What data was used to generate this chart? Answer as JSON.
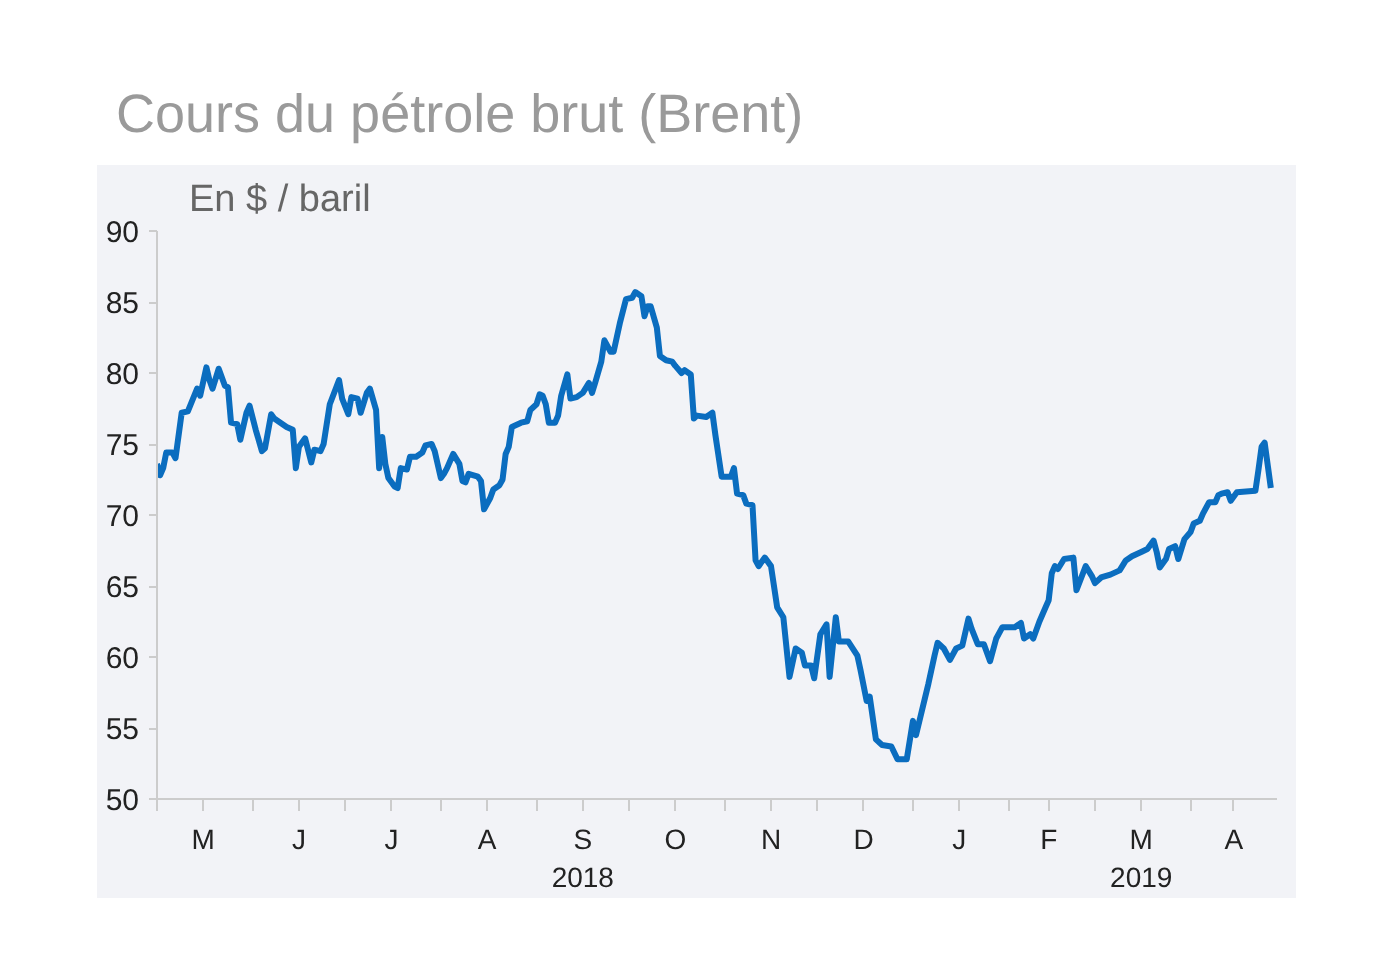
{
  "chart_data": {
    "type": "line",
    "title": "Cours du pétrole brut (Brent)",
    "ylabel": "En $ / baril",
    "xlim": [
      "2018-05-01",
      "2019-04-29"
    ],
    "ylim": [
      50,
      90
    ],
    "yticks": [
      50,
      55,
      60,
      65,
      70,
      75,
      80,
      85,
      90
    ],
    "xticks": [
      {
        "value": "2018-05-01",
        "label": null
      },
      {
        "value": "2018-06-01",
        "label": null
      },
      {
        "value": "2018-07-01",
        "label": null
      },
      {
        "value": "2018-08-01",
        "label": null
      },
      {
        "value": "2018-09-01",
        "label": null
      },
      {
        "value": "2018-10-01",
        "label": null
      },
      {
        "value": "2018-11-01",
        "label": null
      },
      {
        "value": "2018-12-01",
        "label": null
      },
      {
        "value": "2019-01-01",
        "label": null
      },
      {
        "value": "2019-02-01",
        "label": null
      },
      {
        "value": "2019-03-01",
        "label": null
      },
      {
        "value": "2019-04-01",
        "label": null
      },
      {
        "value": "2018-05-16",
        "label": "M"
      },
      {
        "value": "2018-06-16",
        "label": "J"
      },
      {
        "value": "2018-07-16",
        "label": "J"
      },
      {
        "value": "2018-08-16",
        "label": "A"
      },
      {
        "value": "2018-09-16",
        "label": "S\n2018"
      },
      {
        "value": "2018-10-16",
        "label": "O"
      },
      {
        "value": "2018-11-16",
        "label": "N"
      },
      {
        "value": "2018-12-16",
        "label": "D"
      },
      {
        "value": "2019-01-16",
        "label": "J"
      },
      {
        "value": "2019-02-14",
        "label": "F"
      },
      {
        "value": "2019-03-16",
        "label": "M\n2019"
      },
      {
        "value": "2019-04-15",
        "label": "A"
      }
    ],
    "grid": false,
    "marker": "none",
    "line_style": "solid",
    "series": [
      {
        "color": "#0b6dbf",
        "x": [
          "2018-05-01",
          "2018-05-02",
          "2018-05-03",
          "2018-05-04",
          "2018-05-06",
          "2018-05-07",
          "2018-05-09",
          "2018-05-11",
          "2018-05-14",
          "2018-05-15",
          "2018-05-17",
          "2018-05-18",
          "2018-05-19",
          "2018-05-21",
          "2018-05-23",
          "2018-05-24",
          "2018-05-25",
          "2018-05-27",
          "2018-05-28",
          "2018-05-30",
          "2018-05-31",
          "2018-06-02",
          "2018-06-04",
          "2018-06-05",
          "2018-06-07",
          "2018-06-08",
          "2018-06-10",
          "2018-06-12",
          "2018-06-14",
          "2018-06-15",
          "2018-06-16",
          "2018-06-18",
          "2018-06-20",
          "2018-06-21",
          "2018-06-23",
          "2018-06-24",
          "2018-06-26",
          "2018-06-29",
          "2018-06-30",
          "2018-07-02",
          "2018-07-03",
          "2018-07-05",
          "2018-07-06",
          "2018-07-08",
          "2018-07-09",
          "2018-07-11",
          "2018-07-12",
          "2018-07-13",
          "2018-07-14",
          "2018-07-15",
          "2018-07-17",
          "2018-07-18",
          "2018-07-19",
          "2018-07-21",
          "2018-07-22",
          "2018-07-24",
          "2018-07-26",
          "2018-07-27",
          "2018-07-29",
          "2018-07-30",
          "2018-08-01",
          "2018-08-02",
          "2018-08-03",
          "2018-08-05",
          "2018-08-07",
          "2018-08-08",
          "2018-08-09",
          "2018-08-10",
          "2018-08-13",
          "2018-08-14",
          "2018-08-15",
          "2018-08-17",
          "2018-08-18",
          "2018-08-20",
          "2018-08-21",
          "2018-08-22",
          "2018-08-23",
          "2018-08-24",
          "2018-08-27",
          "2018-08-29",
          "2018-08-30",
          "2018-09-01",
          "2018-09-02",
          "2018-09-03",
          "2018-09-04",
          "2018-09-05",
          "2018-09-07",
          "2018-09-08",
          "2018-09-09",
          "2018-09-11",
          "2018-09-12",
          "2018-09-14",
          "2018-09-16",
          "2018-09-18",
          "2018-09-19",
          "2018-09-20",
          "2018-09-22",
          "2018-09-23",
          "2018-09-25",
          "2018-09-26",
          "2018-09-28",
          "2018-09-30",
          "2018-10-02",
          "2018-10-03",
          "2018-10-05",
          "2018-10-06",
          "2018-10-07",
          "2018-10-08",
          "2018-10-10",
          "2018-10-11",
          "2018-10-13",
          "2018-10-15",
          "2018-10-16",
          "2018-10-18",
          "2018-10-19",
          "2018-10-21",
          "2018-10-22",
          "2018-10-23",
          "2018-10-26",
          "2018-10-28",
          "2018-10-29",
          "2018-10-31",
          "2018-11-03",
          "2018-11-04",
          "2018-11-05",
          "2018-11-07",
          "2018-11-08",
          "2018-11-10",
          "2018-11-11",
          "2018-11-12",
          "2018-11-14",
          "2018-11-16",
          "2018-11-18",
          "2018-11-20",
          "2018-11-22",
          "2018-11-24",
          "2018-11-26",
          "2018-11-27",
          "2018-11-29",
          "2018-11-30",
          "2018-12-02",
          "2018-12-04",
          "2018-12-05",
          "2018-12-07",
          "2018-12-08",
          "2018-12-11",
          "2018-12-14",
          "2018-12-15",
          "2018-12-17",
          "2018-12-18",
          "2018-12-20",
          "2018-12-22",
          "2018-12-25",
          "2018-12-27",
          "2018-12-30",
          "2019-01-01",
          "2019-01-02",
          "2019-01-05",
          "2019-01-06",
          "2019-01-08",
          "2019-01-09",
          "2019-01-11",
          "2019-01-13",
          "2019-01-15",
          "2019-01-17",
          "2019-01-19",
          "2019-01-20",
          "2019-01-22",
          "2019-01-24",
          "2019-01-26",
          "2019-01-28",
          "2019-01-30",
          "2019-02-03",
          "2019-02-05",
          "2019-02-06",
          "2019-02-08",
          "2019-02-09",
          "2019-02-11",
          "2019-02-13",
          "2019-02-14",
          "2019-02-15",
          "2019-02-16",
          "2019-02-17",
          "2019-02-19",
          "2019-02-22",
          "2019-02-23",
          "2019-02-26",
          "2019-02-28",
          "2019-03-01",
          "2019-03-03",
          "2019-03-06",
          "2019-03-09",
          "2019-03-11",
          "2019-03-13",
          "2019-03-16",
          "2019-03-18",
          "2019-03-20",
          "2019-03-21",
          "2019-03-22",
          "2019-03-24",
          "2019-03-25",
          "2019-03-27",
          "2019-03-28",
          "2019-03-30",
          "2019-04-01",
          "2019-04-02",
          "2019-04-04",
          "2019-04-05",
          "2019-04-07",
          "2019-04-09",
          "2019-04-10",
          "2019-04-11",
          "2019-04-13",
          "2019-04-14",
          "2019-04-16",
          "2019-04-22",
          "2019-04-23",
          "2019-04-24",
          "2019-04-25",
          "2019-04-27"
        ],
        "values": [
          73.6,
          72.8,
          73.3,
          74.4,
          74.4,
          74.0,
          77.2,
          77.3,
          78.9,
          78.4,
          80.4,
          79.5,
          78.9,
          80.3,
          79.1,
          79.0,
          76.5,
          76.4,
          75.3,
          77.2,
          77.7,
          76.0,
          74.5,
          74.7,
          77.1,
          76.8,
          76.5,
          76.2,
          76.0,
          73.3,
          74.8,
          75.4,
          73.7,
          74.6,
          74.5,
          75.0,
          77.8,
          79.5,
          78.2,
          77.1,
          78.3,
          78.2,
          77.2,
          78.6,
          78.9,
          77.4,
          73.3,
          75.5,
          73.6,
          72.6,
          72.0,
          71.9,
          73.3,
          73.2,
          74.1,
          74.1,
          74.4,
          74.9,
          75.0,
          74.5,
          72.6,
          72.9,
          73.3,
          74.3,
          73.6,
          72.4,
          72.3,
          72.9,
          72.7,
          72.4,
          70.4,
          71.2,
          71.8,
          72.1,
          72.5,
          74.3,
          74.8,
          76.2,
          76.5,
          76.6,
          77.4,
          77.8,
          78.5,
          78.4,
          77.8,
          76.5,
          76.5,
          77.0,
          78.4,
          79.9,
          78.2,
          78.3,
          78.6,
          79.3,
          78.6,
          79.3,
          80.8,
          82.3,
          81.5,
          81.5,
          83.5,
          85.2,
          85.3,
          85.7,
          85.4,
          84.0,
          84.7,
          84.7,
          83.2,
          81.2,
          80.9,
          80.8,
          80.5,
          80.0,
          80.2,
          79.9,
          76.8,
          77.0,
          76.9,
          77.2,
          75.6,
          72.7,
          72.7,
          73.3,
          71.5,
          71.4,
          70.8,
          70.7,
          66.8,
          66.4,
          67.0,
          66.4,
          63.5,
          62.8,
          58.6,
          60.6,
          60.3,
          59.4,
          59.4,
          58.5,
          61.6,
          62.3,
          58.6,
          62.8,
          61.1,
          61.1,
          60.1,
          59.1,
          56.9,
          57.2,
          54.2,
          53.8,
          53.7,
          52.8,
          52.8,
          55.5,
          54.5,
          57.2,
          58.1,
          60.1,
          61.0,
          60.6,
          59.8,
          60.6,
          60.8,
          62.7,
          62.0,
          60.9,
          60.9,
          59.7,
          61.3,
          62.1,
          62.1,
          62.4,
          61.3,
          61.6,
          61.3,
          62.5,
          63.5,
          64.0,
          65.9,
          66.4,
          66.2,
          66.9,
          67.0,
          64.7,
          66.4,
          65.7,
          65.2,
          65.6,
          65.8,
          66.1,
          66.8,
          67.1,
          67.4,
          67.6,
          68.2,
          67.4,
          66.3,
          66.9,
          67.6,
          67.8,
          66.9,
          68.3,
          68.8,
          69.4,
          69.6,
          70.1,
          70.9,
          70.9,
          71.4,
          71.5,
          71.6,
          71.0,
          71.6,
          71.7,
          73.2,
          74.8,
          75.1,
          71.9
        ]
      }
    ]
  }
}
